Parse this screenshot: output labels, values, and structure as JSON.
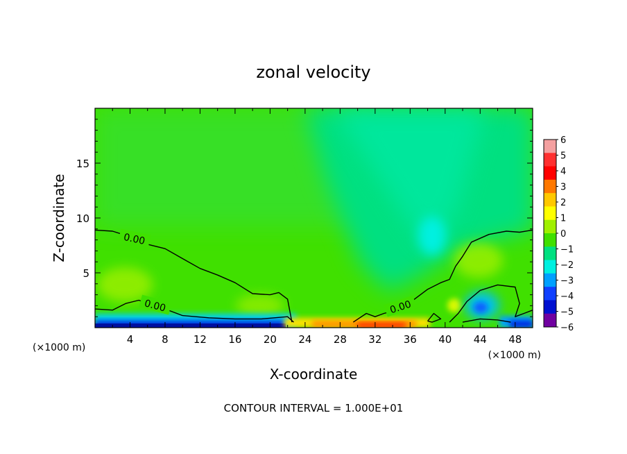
{
  "chart_data": {
    "type": "heatmap",
    "title": "zonal velocity",
    "xlabel": "X-coordinate",
    "ylabel": "Z-coordinate",
    "x_unit": "(×1000 m)",
    "x_unit_right": "(×1000 m)",
    "xlim": [
      0,
      50
    ],
    "ylim": [
      0,
      20
    ],
    "x_ticks": [
      4,
      8,
      12,
      16,
      20,
      24,
      28,
      32,
      36,
      40,
      44,
      48
    ],
    "y_ticks": [
      5,
      10,
      15
    ],
    "footer": "CONTOUR INTERVAL = 1.000E+01",
    "contour_label": "0.00",
    "colorbar": {
      "levels": [
        6,
        5,
        4,
        3,
        2,
        1,
        0,
        -1,
        -2,
        -3,
        -4,
        -5,
        -6
      ],
      "labels": [
        "6",
        "5",
        "4",
        "3",
        "2",
        "1",
        "0",
        "−1",
        "−2",
        "−3",
        "−4",
        "−5",
        "−6"
      ],
      "colors": [
        "#f4a0a0",
        "#ff3030",
        "#ff0000",
        "#ff7800",
        "#ffc800",
        "#ffff00",
        "#a0f000",
        "#40e000",
        "#00e080",
        "#00f0e0",
        "#00a0ff",
        "#1040ff",
        "#0010d0",
        "#7000a0"
      ]
    },
    "contour_zero_lines": [
      {
        "name": "",
        "x": [
          0,
          2,
          4,
          6,
          8,
          10,
          12,
          14,
          16,
          18,
          20,
          21,
          22,
          22.5
        ],
        "y": [
          8.9,
          8.8,
          8.3,
          7.6,
          7.2,
          6.3,
          5.4,
          4.8,
          4.1,
          3.1,
          3.0,
          3.2,
          2.6,
          0.5
        ]
      },
      {
        "name": "",
        "x": [
          0,
          2,
          3.5,
          5,
          7,
          10,
          13,
          16,
          19,
          22,
          22.7
        ],
        "y": [
          1.7,
          1.6,
          2.2,
          2.5,
          2.0,
          1.1,
          0.9,
          0.8,
          0.8,
          1.0,
          0.5
        ]
      },
      {
        "name": "",
        "x": [
          29.5,
          31,
          32,
          33,
          35,
          36,
          38,
          39.5,
          40.5,
          41.2,
          42,
          43,
          45,
          47,
          48.5,
          50
        ],
        "y": [
          0.5,
          1.3,
          1.0,
          1.3,
          1.7,
          2.3,
          3.5,
          4.1,
          4.4,
          5.6,
          6.5,
          7.8,
          8.5,
          8.8,
          8.7,
          8.9
        ]
      },
      {
        "name": "",
        "x": [
          40.5,
          41.5,
          42.5,
          44,
          46,
          48,
          48.5,
          48,
          49,
          50
        ],
        "y": [
          0.5,
          1.3,
          2.4,
          3.4,
          3.9,
          3.7,
          2.2,
          1.0,
          1.3,
          1.6
        ]
      },
      {
        "name": "",
        "x": [
          38,
          38.7,
          39.5,
          38.5,
          38
        ],
        "y": [
          0.6,
          1.3,
          0.8,
          0.5,
          0.6
        ]
      },
      {
        "name": "",
        "x": [
          42,
          44,
          46,
          47.5
        ],
        "y": [
          0.5,
          0.8,
          0.7,
          0.5
        ]
      }
    ],
    "field_features": [
      {
        "kind": "negative_lobe_upper",
        "x": 38.5,
        "z": 8.5,
        "value": -2.0
      },
      {
        "kind": "positive_lobe_left",
        "x": 3.5,
        "z": 4.0,
        "value": 0.8
      },
      {
        "kind": "positive_lobe_mid",
        "x": 19,
        "z": 2.0,
        "value": 0.8
      },
      {
        "kind": "positive_lobe_right",
        "x": 44,
        "z": 6.5,
        "value": 1.0
      },
      {
        "kind": "negative_core_right",
        "x": 44.5,
        "z": 2.0,
        "value": -3.0
      },
      {
        "kind": "surface_jet_positive",
        "x": 34,
        "z": 0.2,
        "value": 4.5
      },
      {
        "kind": "surface_jet_negative",
        "x": 6,
        "z": 0.2,
        "value": -5.0
      }
    ]
  }
}
